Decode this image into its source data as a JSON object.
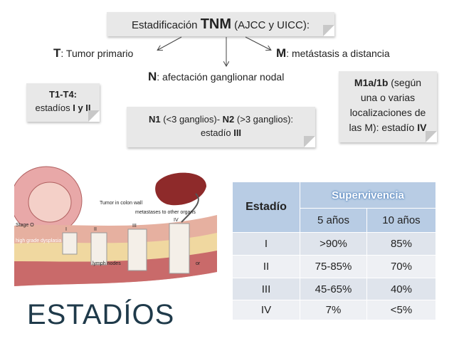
{
  "header": {
    "pre": "Estadificación ",
    "bold": "TNM",
    "post": " (AJCC y UICC):"
  },
  "t": {
    "letter": "T",
    "text": ": Tumor primario"
  },
  "n": {
    "letter": "N",
    "text": ": afectación ganglionar nodal"
  },
  "m": {
    "letter": "M",
    "text": ": metástasis a distancia"
  },
  "t_box": {
    "line1": "T1-T4:",
    "line2_pre": "estadíos ",
    "line2_bold": "I y II"
  },
  "n_box": {
    "b1": "N1",
    "t1": " (<3 ganglios)- ",
    "b2": "N2",
    "t2": " (>3 ganglios):",
    "line2_pre": "estadío ",
    "line2_bold": "III"
  },
  "m_box": {
    "b1": "M1a/1b",
    "t1": " (según",
    "line2": "una o varias",
    "line3": "localizaciones de",
    "line4_pre": "las M): estadío ",
    "line4_bold": "IV"
  },
  "illustration": {
    "stage0": "Stage O",
    "dysplasia": "high grade dysplasia",
    "tumor": "Tumor in colon wall",
    "metastases": "metastases to other organs",
    "nodes": "lymph nodes",
    "or": "or",
    "stages": [
      "I",
      "II",
      "III",
      "IV"
    ]
  },
  "slide_title": "ESTADÍOS",
  "table": {
    "stage_header": "Estadío",
    "survival_header": "Supervivencia",
    "columns": [
      "5 años",
      "10 años"
    ],
    "rows": [
      [
        "I",
        ">90%",
        "85%"
      ],
      [
        "II",
        "75-85%",
        "70%"
      ],
      [
        "III",
        "45-65%",
        "40%"
      ],
      [
        "IV",
        "7%",
        "<5%"
      ]
    ]
  }
}
